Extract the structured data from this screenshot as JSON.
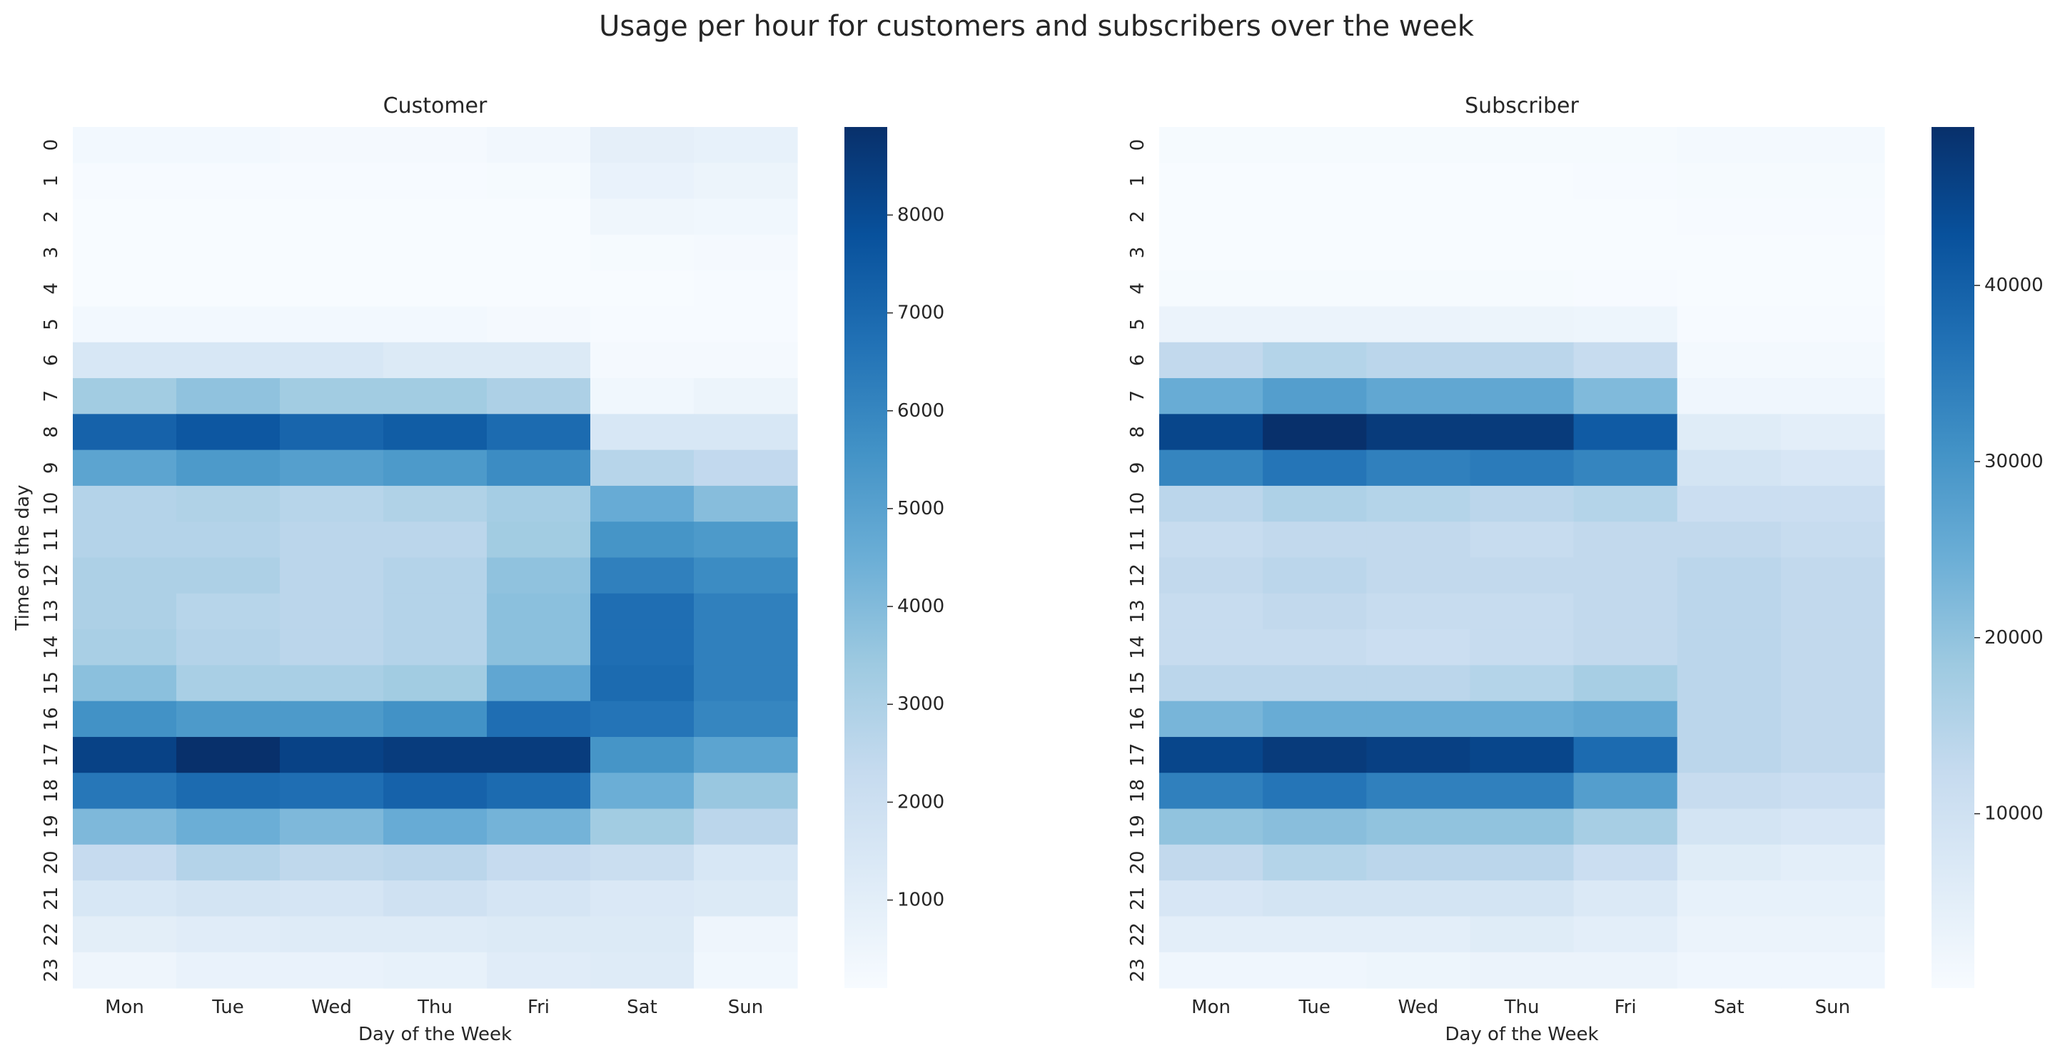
{
  "figure": {
    "title": "Usage per hour for customers and subscribers over the week"
  },
  "chart_data": [
    {
      "type": "heatmap",
      "title": "Customer",
      "xlabel": "Day of the Week",
      "ylabel": "Time of the day",
      "x": [
        "Mon",
        "Tue",
        "Wed",
        "Thu",
        "Fri",
        "Sat",
        "Sun"
      ],
      "y": [
        "0",
        "1",
        "2",
        "3",
        "4",
        "5",
        "6",
        "7",
        "8",
        "9",
        "10",
        "11",
        "12",
        "13",
        "14",
        "15",
        "16",
        "17",
        "18",
        "19",
        "20",
        "21",
        "22",
        "23"
      ],
      "colormap": "Blues",
      "vmin": 100,
      "vmax": 8900,
      "colorbar_ticks": [
        "1000",
        "2000",
        "3000",
        "4000",
        "5000",
        "6000",
        "7000",
        "8000"
      ],
      "values": [
        [
          300,
          300,
          250,
          250,
          350,
          900,
          800
        ],
        [
          150,
          150,
          150,
          150,
          200,
          700,
          600
        ],
        [
          100,
          100,
          100,
          100,
          100,
          450,
          400
        ],
        [
          80,
          80,
          80,
          80,
          80,
          200,
          250
        ],
        [
          80,
          80,
          80,
          80,
          80,
          100,
          150
        ],
        [
          300,
          300,
          300,
          300,
          250,
          150,
          150
        ],
        [
          1500,
          1500,
          1500,
          1300,
          1300,
          250,
          250
        ],
        [
          3300,
          3700,
          3300,
          3300,
          3000,
          400,
          600
        ],
        [
          7200,
          7600,
          7100,
          7400,
          6900,
          1500,
          1500
        ],
        [
          4900,
          5300,
          5100,
          5300,
          5800,
          2700,
          2400
        ],
        [
          2800,
          2900,
          2700,
          2900,
          3200,
          4600,
          3900
        ],
        [
          2800,
          2800,
          2600,
          2600,
          3300,
          5500,
          5300
        ],
        [
          3000,
          3000,
          2600,
          2800,
          3700,
          6200,
          5800
        ],
        [
          3000,
          2700,
          2600,
          2800,
          3800,
          6800,
          6200
        ],
        [
          3100,
          2800,
          2600,
          2800,
          3800,
          6800,
          6200
        ],
        [
          3800,
          3100,
          3100,
          3300,
          4800,
          6900,
          6200
        ],
        [
          5600,
          5300,
          5300,
          5600,
          6800,
          6600,
          6000
        ],
        [
          8300,
          8900,
          8300,
          8500,
          8500,
          5500,
          4900
        ],
        [
          6500,
          6900,
          6800,
          7200,
          6900,
          4500,
          3500
        ],
        [
          4100,
          4500,
          4100,
          4600,
          4300,
          3300,
          2600
        ],
        [
          2300,
          2800,
          2500,
          2600,
          2300,
          2100,
          1500
        ],
        [
          1500,
          1700,
          1600,
          1900,
          1600,
          1400,
          1300
        ],
        [
          1000,
          1100,
          1200,
          1200,
          1300,
          1300,
          500
        ],
        [
          500,
          700,
          700,
          800,
          1100,
          1200,
          400
        ]
      ]
    },
    {
      "type": "heatmap",
      "title": "Subscriber",
      "xlabel": "Day of the Week",
      "ylabel": "",
      "x": [
        "Mon",
        "Tue",
        "Wed",
        "Thu",
        "Fri",
        "Sat",
        "Sun"
      ],
      "y": [
        "0",
        "1",
        "2",
        "3",
        "4",
        "5",
        "6",
        "7",
        "8",
        "9",
        "10",
        "11",
        "12",
        "13",
        "14",
        "15",
        "16",
        "17",
        "18",
        "19",
        "20",
        "21",
        "22",
        "23"
      ],
      "colormap": "Blues",
      "vmin": 100,
      "vmax": 49000,
      "colorbar_ticks": [
        "10000",
        "20000",
        "30000",
        "40000"
      ],
      "values": [
        [
          500,
          500,
          500,
          500,
          600,
          1000,
          1000
        ],
        [
          200,
          200,
          200,
          200,
          300,
          600,
          600
        ],
        [
          150,
          150,
          150,
          150,
          150,
          300,
          300
        ],
        [
          200,
          200,
          200,
          200,
          200,
          200,
          200
        ],
        [
          500,
          500,
          500,
          500,
          400,
          200,
          200
        ],
        [
          3000,
          3000,
          3000,
          2800,
          2500,
          400,
          400
        ],
        [
          13000,
          15000,
          14000,
          14000,
          12000,
          1000,
          1000
        ],
        [
          25000,
          28000,
          26000,
          26000,
          22000,
          2000,
          2000
        ],
        [
          45000,
          49000,
          47000,
          47000,
          41000,
          6000,
          5000
        ],
        [
          33000,
          36000,
          34000,
          35000,
          33000,
          9000,
          8000
        ],
        [
          14000,
          16000,
          15000,
          14000,
          15000,
          11000,
          11000
        ],
        [
          12000,
          13000,
          13000,
          12000,
          13000,
          13000,
          12000
        ],
        [
          13000,
          14000,
          13000,
          13000,
          13000,
          14000,
          13000
        ],
        [
          12000,
          13000,
          12000,
          12000,
          13000,
          14000,
          13000
        ],
        [
          12000,
          12000,
          11000,
          12000,
          13000,
          14000,
          13000
        ],
        [
          14000,
          14000,
          14000,
          15000,
          17000,
          14000,
          13000
        ],
        [
          23000,
          25000,
          25000,
          25000,
          26000,
          14000,
          13000
        ],
        [
          45000,
          47000,
          46000,
          45000,
          38000,
          14000,
          13000
        ],
        [
          34000,
          36000,
          34000,
          34000,
          28000,
          12000,
          11000
        ],
        [
          20000,
          21000,
          20000,
          20000,
          17000,
          9000,
          8000
        ],
        [
          13000,
          15000,
          14000,
          14000,
          11000,
          6000,
          5000
        ],
        [
          8000,
          9000,
          9000,
          9000,
          7000,
          4000,
          4000
        ],
        [
          5000,
          5000,
          5000,
          6000,
          5000,
          3000,
          3000
        ],
        [
          2000,
          2000,
          2500,
          3000,
          3000,
          2000,
          2000
        ]
      ]
    }
  ]
}
